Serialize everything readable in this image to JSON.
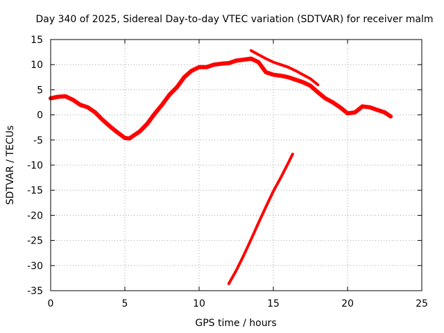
{
  "chart_data": {
    "type": "line",
    "title": "Day 340 of 2025, Sidereal Day-to-day VTEC variation (SDTVAR) for receiver malm",
    "xlabel": "GPS time / hours",
    "ylabel": "SDTVAR / TECUs",
    "xlim": [
      0,
      25
    ],
    "ylim": [
      -35,
      15
    ],
    "xticks": [
      0,
      5,
      10,
      15,
      20,
      25
    ],
    "yticks": [
      15,
      10,
      5,
      0,
      -5,
      -10,
      -15,
      -20,
      -25,
      -30,
      -35
    ],
    "grid": true,
    "color": "#ff0000",
    "series": [
      {
        "name": "main-band",
        "points": [
          [
            0.0,
            3.3
          ],
          [
            0.5,
            3.6
          ],
          [
            1.0,
            3.7
          ],
          [
            1.5,
            3.0
          ],
          [
            2.0,
            2.0
          ],
          [
            2.5,
            1.5
          ],
          [
            3.0,
            0.5
          ],
          [
            3.5,
            -1.0
          ],
          [
            4.0,
            -2.3
          ],
          [
            4.5,
            -3.5
          ],
          [
            5.0,
            -4.6
          ],
          [
            5.3,
            -4.7
          ],
          [
            5.5,
            -4.3
          ],
          [
            6.0,
            -3.3
          ],
          [
            6.5,
            -1.8
          ],
          [
            7.0,
            0.2
          ],
          [
            7.5,
            2.0
          ],
          [
            8.0,
            4.0
          ],
          [
            8.5,
            5.5
          ],
          [
            9.0,
            7.5
          ],
          [
            9.5,
            8.8
          ],
          [
            10.0,
            9.5
          ],
          [
            10.5,
            9.5
          ],
          [
            11.0,
            10.0
          ],
          [
            11.5,
            10.2
          ],
          [
            12.0,
            10.3
          ],
          [
            12.5,
            10.8
          ],
          [
            13.0,
            11.0
          ],
          [
            13.5,
            11.2
          ],
          [
            14.0,
            10.5
          ],
          [
            14.5,
            8.5
          ],
          [
            15.0,
            8.0
          ],
          [
            15.5,
            7.8
          ],
          [
            16.0,
            7.5
          ],
          [
            16.5,
            7.0
          ],
          [
            17.0,
            6.5
          ],
          [
            17.5,
            5.8
          ],
          [
            18.0,
            4.5
          ],
          [
            18.5,
            3.3
          ],
          [
            19.0,
            2.5
          ],
          [
            19.5,
            1.5
          ],
          [
            20.0,
            0.3
          ],
          [
            20.5,
            0.5
          ],
          [
            21.0,
            1.7
          ],
          [
            21.5,
            1.5
          ],
          [
            22.0,
            1.0
          ],
          [
            22.5,
            0.5
          ],
          [
            22.9,
            -0.3
          ]
        ]
      },
      {
        "name": "upper-branch",
        "points": [
          [
            13.5,
            12.8
          ],
          [
            14.0,
            12.0
          ],
          [
            14.5,
            11.2
          ],
          [
            15.0,
            10.5
          ],
          [
            15.5,
            10.0
          ],
          [
            16.0,
            9.5
          ],
          [
            16.5,
            8.8
          ],
          [
            17.0,
            8.0
          ],
          [
            17.5,
            7.2
          ],
          [
            18.0,
            6.0
          ]
        ]
      },
      {
        "name": "lower-branch",
        "points": [
          [
            12.0,
            -33.6
          ],
          [
            12.5,
            -31.0
          ],
          [
            13.0,
            -28.0
          ],
          [
            13.5,
            -24.8
          ],
          [
            14.0,
            -21.5
          ],
          [
            14.5,
            -18.3
          ],
          [
            15.0,
            -15.2
          ],
          [
            15.5,
            -12.5
          ],
          [
            16.0,
            -9.6
          ],
          [
            16.3,
            -7.8
          ]
        ]
      }
    ]
  }
}
